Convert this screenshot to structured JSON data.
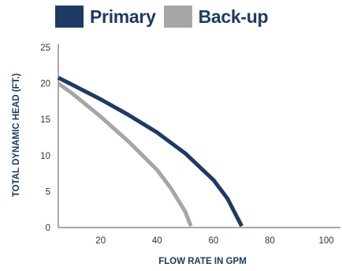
{
  "chart_data": {
    "type": "line",
    "xlabel": "FLOW RATE IN GPM",
    "ylabel": "TOTAL DYNAMIC HEAD (FT.)",
    "xlim": [
      5,
      105
    ],
    "ylim": [
      0,
      25
    ],
    "x_ticks": [
      "20",
      "40",
      "60",
      "80",
      "100"
    ],
    "y_ticks": [
      "0",
      "5",
      "10",
      "15",
      "20",
      "25"
    ],
    "grid": false,
    "legend_position": "top",
    "series": [
      {
        "name": "Primary",
        "color": "#1f3a63",
        "points": [
          [
            5,
            20.8
          ],
          [
            10,
            19.8
          ],
          [
            20,
            17.8
          ],
          [
            30,
            15.6
          ],
          [
            40,
            13.2
          ],
          [
            50,
            10.3
          ],
          [
            60,
            6.6
          ],
          [
            65,
            4.0
          ],
          [
            70,
            0.2
          ]
        ]
      },
      {
        "name": "Back-up",
        "color": "#a6a6a6",
        "points": [
          [
            5,
            20.0
          ],
          [
            10,
            18.6
          ],
          [
            20,
            15.4
          ],
          [
            30,
            11.9
          ],
          [
            40,
            8.0
          ],
          [
            45,
            5.4
          ],
          [
            50,
            2.2
          ],
          [
            52,
            0.2
          ]
        ]
      }
    ]
  }
}
